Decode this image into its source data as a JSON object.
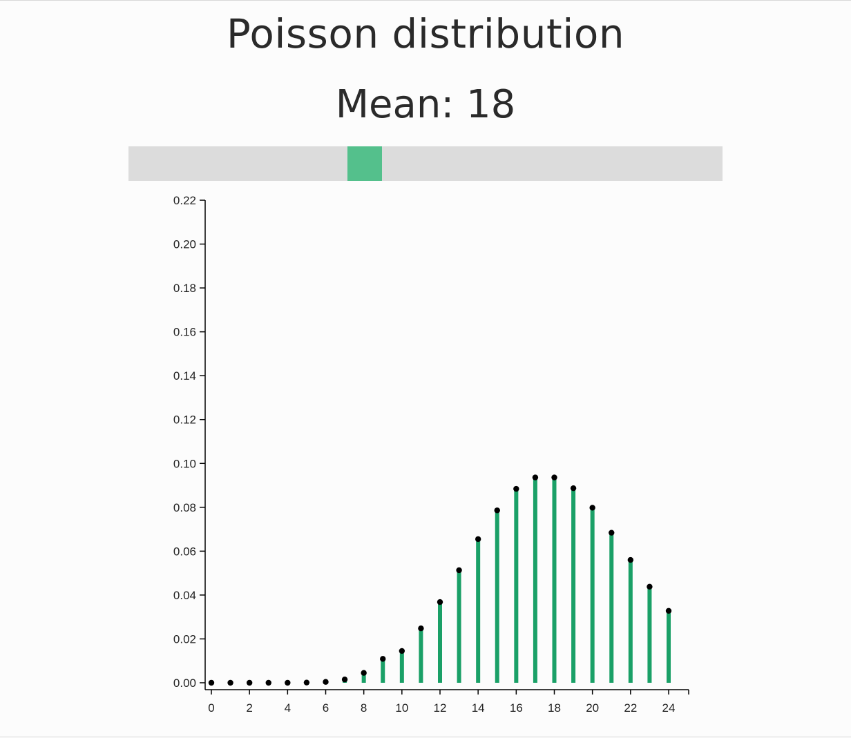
{
  "header": {
    "title": "Poisson distribution",
    "mean_label": "Mean:",
    "mean_value": "18"
  },
  "slider": {
    "min": 0,
    "max": 50,
    "value": 18,
    "track_color": "#dcdcdc",
    "handle_color": "#54c08c"
  },
  "chart_data": {
    "type": "bar",
    "title": "",
    "xlabel": "",
    "ylabel": "",
    "x": [
      0,
      1,
      2,
      3,
      4,
      5,
      6,
      7,
      8,
      9,
      10,
      11,
      12,
      13,
      14,
      15,
      16,
      17,
      18,
      19,
      20,
      21,
      22,
      23,
      24
    ],
    "values": [
      0.0,
      0.0,
      0.0,
      0.0,
      0.0,
      0.0001,
      0.0004,
      0.0015,
      0.0045,
      0.0109,
      0.0145,
      0.0248,
      0.0368,
      0.0513,
      0.0655,
      0.0786,
      0.0884,
      0.0936,
      0.0936,
      0.0887,
      0.0798,
      0.0684,
      0.056,
      0.0438,
      0.0328
    ],
    "xlim": [
      0,
      25
    ],
    "ylim": [
      0,
      0.22
    ],
    "xticks": [
      "0",
      "2",
      "4",
      "6",
      "8",
      "10",
      "12",
      "14",
      "16",
      "18",
      "20",
      "22",
      "24"
    ],
    "yticks": [
      "0.00",
      "0.02",
      "0.04",
      "0.06",
      "0.08",
      "0.10",
      "0.12",
      "0.14",
      "0.16",
      "0.18",
      "0.20",
      "0.22"
    ],
    "bar_color": "#1aa067",
    "point_color": "#000000",
    "grid": false
  }
}
